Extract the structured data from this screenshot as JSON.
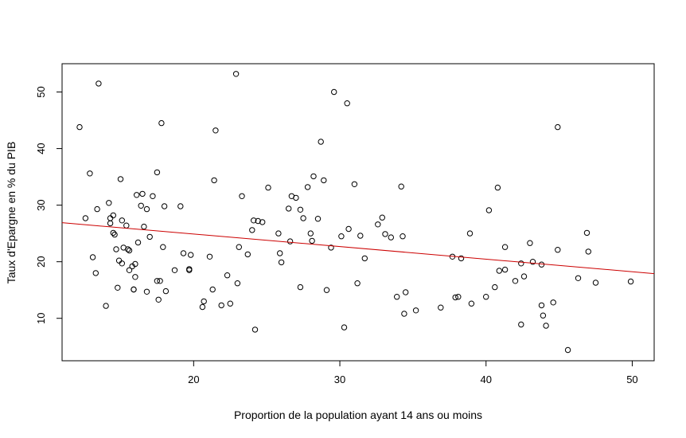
{
  "chart_data": {
    "type": "scatter",
    "title": "",
    "xlabel": "Proportion de la population ayant 14 ans ou moins",
    "ylabel": "Taux d'Epargne en % du PIB",
    "xlim": [
      11,
      51.5
    ],
    "ylim": [
      2.5,
      55
    ],
    "xticks": [
      20,
      30,
      40,
      50
    ],
    "yticks": [
      10,
      20,
      30,
      40,
      50
    ],
    "grid": false,
    "legend": "none",
    "point_color": "#000000",
    "regression_line": {
      "x": [
        11,
        51.5
      ],
      "y": [
        26.9,
        17.9
      ],
      "color": "#cc0000"
    },
    "points": [
      [
        12.2,
        43.8
      ],
      [
        12.6,
        27.7
      ],
      [
        12.9,
        35.6
      ],
      [
        13.1,
        20.8
      ],
      [
        13.3,
        18.0
      ],
      [
        13.4,
        29.3
      ],
      [
        13.5,
        51.5
      ],
      [
        14.0,
        12.2
      ],
      [
        14.2,
        30.4
      ],
      [
        14.3,
        27.7
      ],
      [
        14.5,
        28.2
      ],
      [
        14.7,
        22.2
      ],
      [
        14.8,
        15.4
      ],
      [
        14.9,
        20.2
      ],
      [
        15.0,
        34.6
      ],
      [
        15.1,
        19.7
      ],
      [
        15.2,
        22.5
      ],
      [
        15.5,
        22.2
      ],
      [
        15.6,
        18.5
      ],
      [
        15.8,
        19.2
      ],
      [
        15.9,
        15.1
      ],
      [
        16.0,
        17.3
      ],
      [
        16.1,
        31.8
      ],
      [
        16.2,
        23.4
      ],
      [
        16.4,
        29.9
      ],
      [
        16.5,
        32.0
      ],
      [
        16.8,
        29.3
      ],
      [
        17.0,
        24.4
      ],
      [
        17.2,
        31.6
      ],
      [
        17.5,
        35.8
      ],
      [
        17.6,
        13.3
      ],
      [
        17.7,
        16.6
      ],
      [
        17.8,
        44.5
      ],
      [
        17.9,
        22.6
      ],
      [
        18.1,
        14.8
      ],
      [
        14.5,
        25.1
      ],
      [
        14.3,
        26.8
      ],
      [
        15.1,
        27.3
      ],
      [
        15.9,
        15.1
      ],
      [
        16.6,
        26.2
      ],
      [
        16.8,
        14.7
      ],
      [
        18.7,
        18.5
      ],
      [
        19.1,
        29.8
      ],
      [
        19.3,
        21.5
      ],
      [
        19.7,
        18.5
      ],
      [
        20.6,
        12.0
      ],
      [
        20.7,
        13.0
      ],
      [
        21.3,
        15.1
      ],
      [
        21.4,
        34.4
      ],
      [
        21.5,
        43.2
      ],
      [
        21.9,
        12.3
      ],
      [
        22.3,
        17.6
      ],
      [
        22.5,
        12.6
      ],
      [
        22.9,
        53.2
      ],
      [
        23.0,
        16.2
      ],
      [
        23.1,
        22.6
      ],
      [
        23.3,
        31.6
      ],
      [
        23.7,
        21.3
      ],
      [
        24.0,
        25.6
      ],
      [
        24.2,
        8.0
      ],
      [
        24.4,
        27.2
      ],
      [
        24.7,
        27.0
      ],
      [
        25.1,
        33.1
      ],
      [
        25.8,
        25.0
      ],
      [
        25.9,
        21.5
      ],
      [
        26.0,
        19.9
      ],
      [
        26.5,
        29.4
      ],
      [
        26.7,
        31.6
      ],
      [
        27.0,
        31.3
      ],
      [
        27.3,
        29.2
      ],
      [
        27.5,
        27.7
      ],
      [
        27.8,
        33.2
      ],
      [
        28.0,
        25.0
      ],
      [
        28.2,
        35.1
      ],
      [
        28.5,
        27.6
      ],
      [
        28.7,
        41.2
      ],
      [
        28.9,
        34.4
      ],
      [
        29.1,
        15.0
      ],
      [
        29.4,
        22.5
      ],
      [
        29.6,
        50.0
      ],
      [
        30.1,
        24.5
      ],
      [
        30.3,
        8.4
      ],
      [
        30.5,
        48.0
      ],
      [
        30.6,
        25.8
      ],
      [
        31.0,
        33.7
      ],
      [
        31.2,
        16.2
      ],
      [
        31.4,
        24.6
      ],
      [
        31.7,
        20.6
      ],
      [
        32.6,
        26.6
      ],
      [
        32.9,
        27.8
      ],
      [
        33.1,
        24.9
      ],
      [
        33.5,
        24.3
      ],
      [
        33.9,
        13.8
      ],
      [
        34.2,
        33.3
      ],
      [
        34.5,
        14.6
      ],
      [
        34.4,
        10.8
      ],
      [
        35.2,
        11.4
      ],
      [
        36.9,
        11.9
      ],
      [
        37.7,
        20.9
      ],
      [
        37.9,
        13.7
      ],
      [
        38.1,
        13.8
      ],
      [
        38.3,
        20.6
      ],
      [
        38.9,
        25.0
      ],
      [
        39.0,
        12.6
      ],
      [
        40.0,
        13.8
      ],
      [
        40.2,
        29.1
      ],
      [
        40.6,
        15.5
      ],
      [
        40.8,
        33.1
      ],
      [
        41.3,
        22.6
      ],
      [
        42.0,
        16.6
      ],
      [
        42.4,
        8.9
      ],
      [
        42.6,
        17.4
      ],
      [
        43.0,
        23.3
      ],
      [
        43.2,
        20.0
      ],
      [
        43.8,
        12.3
      ],
      [
        43.9,
        10.5
      ],
      [
        44.1,
        8.7
      ],
      [
        44.6,
        12.8
      ],
      [
        44.9,
        22.1
      ],
      [
        44.9,
        43.8
      ],
      [
        45.6,
        4.4
      ],
      [
        46.3,
        17.1
      ],
      [
        46.9,
        25.1
      ],
      [
        47.0,
        21.8
      ],
      [
        47.5,
        16.3
      ],
      [
        49.9,
        16.5
      ],
      [
        43.8,
        19.5
      ],
      [
        42.4,
        19.7
      ],
      [
        41.3,
        18.6
      ],
      [
        40.9,
        18.4
      ],
      [
        34.3,
        24.5
      ],
      [
        28.1,
        23.7
      ],
      [
        27.3,
        15.5
      ],
      [
        26.6,
        23.6
      ],
      [
        24.1,
        27.3
      ],
      [
        21.1,
        20.9
      ],
      [
        19.8,
        21.2
      ],
      [
        19.7,
        18.7
      ],
      [
        17.5,
        16.6
      ],
      [
        16.0,
        19.6
      ],
      [
        15.4,
        26.4
      ],
      [
        15.6,
        22.0
      ],
      [
        14.6,
        24.8
      ],
      [
        18.0,
        29.8
      ]
    ]
  }
}
